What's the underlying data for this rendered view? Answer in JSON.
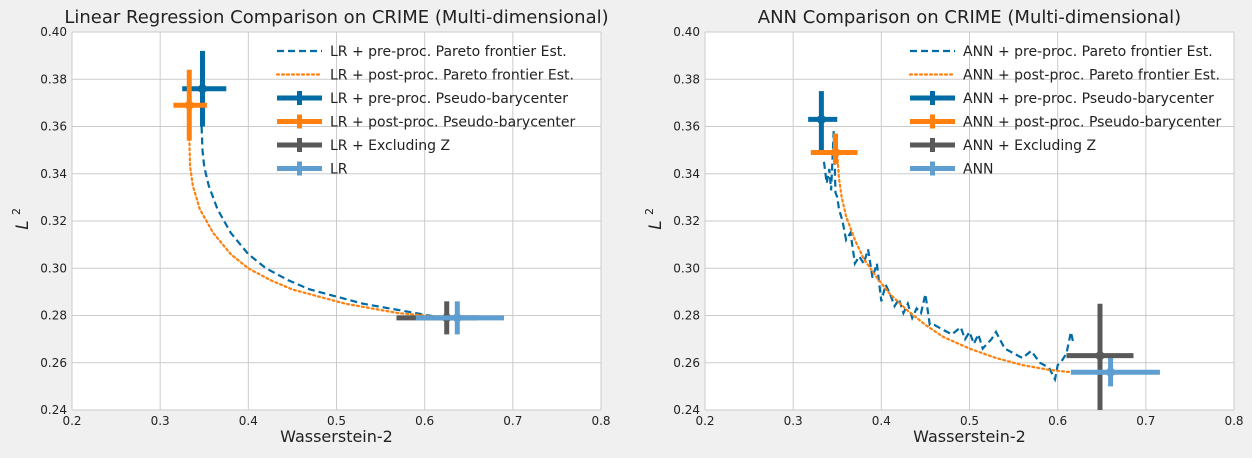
{
  "chart_data": [
    {
      "type": "line",
      "title": "Linear Regression Comparison on CRIME (Multi-dimensional)",
      "xlabel": "Wasserstein-2",
      "ylabel": "L",
      "ylabel_sup": "2",
      "xlim": [
        0.2,
        0.8
      ],
      "ylim": [
        0.24,
        0.4
      ],
      "x_ticks": [
        "0.2",
        "0.3",
        "0.4",
        "0.5",
        "0.6",
        "0.7",
        "0.8"
      ],
      "y_ticks": [
        "0.24",
        "0.26",
        "0.28",
        "0.30",
        "0.32",
        "0.34",
        "0.36",
        "0.38",
        "0.40"
      ],
      "grid": true,
      "legend_position": "top-right",
      "legend": [
        "LR + pre-proc. Pareto frontier Est.",
        "LR + post-proc. Pareto frontier Est.",
        "LR + pre-proc. Pseudo-barycenter",
        "LR + post-proc. Pseudo-barycenter",
        "LR + Excluding Z",
        "LR"
      ],
      "series": [
        {
          "style": "dashed",
          "color": "#006ba4",
          "x": [
            0.347,
            0.348,
            0.35,
            0.355,
            0.365,
            0.38,
            0.4,
            0.42,
            0.445,
            0.47,
            0.5,
            0.53,
            0.56,
            0.59,
            0.62
          ],
          "y": [
            0.36,
            0.35,
            0.343,
            0.335,
            0.325,
            0.315,
            0.306,
            0.3,
            0.295,
            0.291,
            0.288,
            0.285,
            0.283,
            0.281,
            0.279
          ]
        },
        {
          "style": "dotted",
          "color": "#ff800e",
          "x": [
            0.333,
            0.334,
            0.337,
            0.345,
            0.36,
            0.38,
            0.4,
            0.425,
            0.45,
            0.48,
            0.51,
            0.54,
            0.57,
            0.6,
            0.625
          ],
          "y": [
            0.355,
            0.343,
            0.335,
            0.325,
            0.315,
            0.306,
            0.3,
            0.295,
            0.291,
            0.288,
            0.285,
            0.283,
            0.281,
            0.28,
            0.279
          ]
        }
      ],
      "error_markers": [
        {
          "color": "#006ba4",
          "x": 0.348,
          "y": 0.376,
          "xerr": [
            0.325,
            0.375
          ],
          "yerr": [
            0.36,
            0.392
          ]
        },
        {
          "color": "#ff800e",
          "x": 0.333,
          "y": 0.369,
          "xerr": [
            0.315,
            0.353
          ],
          "yerr": [
            0.354,
            0.384
          ]
        },
        {
          "color": "#595959",
          "x": 0.625,
          "y": 0.279,
          "xerr": [
            0.568,
            0.66
          ],
          "yerr": [
            0.272,
            0.286
          ]
        },
        {
          "color": "#5f9ed1",
          "x": 0.637,
          "y": 0.279,
          "xerr": [
            0.59,
            0.69
          ],
          "yerr": [
            0.272,
            0.286
          ]
        }
      ]
    },
    {
      "type": "line",
      "title": "ANN Comparison on CRIME (Multi-dimensional)",
      "xlabel": "Wasserstein-2",
      "ylabel": "L",
      "ylabel_sup": "2",
      "xlim": [
        0.2,
        0.8
      ],
      "ylim": [
        0.24,
        0.4
      ],
      "x_ticks": [
        "0.2",
        "0.3",
        "0.4",
        "0.5",
        "0.6",
        "0.7",
        "0.8"
      ],
      "y_ticks": [
        "0.24",
        "0.26",
        "0.28",
        "0.30",
        "0.32",
        "0.34",
        "0.36",
        "0.38",
        "0.40"
      ],
      "grid": true,
      "legend_position": "top-right",
      "legend": [
        "ANN + pre-proc. Pareto frontier Est.",
        "ANN + post-proc. Pareto frontier Est.",
        "ANN + pre-proc. Pseudo-barycenter",
        "ANN + post-proc. Pseudo-barycenter",
        "ANN + Excluding Z",
        "ANN"
      ],
      "series": [
        {
          "style": "dashed",
          "color": "#006ba4",
          "x": [
            0.335,
            0.338,
            0.341,
            0.343,
            0.346,
            0.348,
            0.35,
            0.352,
            0.356,
            0.36,
            0.365,
            0.37,
            0.375,
            0.38,
            0.385,
            0.39,
            0.395,
            0.4,
            0.405,
            0.41,
            0.415,
            0.42,
            0.425,
            0.43,
            0.435,
            0.44,
            0.445,
            0.45,
            0.455,
            0.46,
            0.47,
            0.48,
            0.49,
            0.495,
            0.5,
            0.505,
            0.51,
            0.515,
            0.52,
            0.525,
            0.53,
            0.54,
            0.55,
            0.56,
            0.57,
            0.58,
            0.59,
            0.597,
            0.6,
            0.605,
            0.61,
            0.615,
            0.618
          ],
          "y": [
            0.345,
            0.336,
            0.342,
            0.333,
            0.358,
            0.332,
            0.33,
            0.325,
            0.32,
            0.312,
            0.315,
            0.302,
            0.305,
            0.302,
            0.308,
            0.296,
            0.302,
            0.286,
            0.293,
            0.289,
            0.284,
            0.287,
            0.281,
            0.285,
            0.279,
            0.283,
            0.281,
            0.289,
            0.276,
            0.276,
            0.274,
            0.272,
            0.275,
            0.27,
            0.273,
            0.268,
            0.272,
            0.266,
            0.268,
            0.27,
            0.273,
            0.266,
            0.264,
            0.262,
            0.265,
            0.26,
            0.258,
            0.253,
            0.259,
            0.261,
            0.264,
            0.273,
            0.268
          ]
        },
        {
          "style": "dotted",
          "color": "#ff800e",
          "x": [
            0.35,
            0.352,
            0.355,
            0.36,
            0.37,
            0.38,
            0.395,
            0.41,
            0.43,
            0.45,
            0.47,
            0.5,
            0.53,
            0.56,
            0.59,
            0.615
          ],
          "y": [
            0.348,
            0.338,
            0.33,
            0.322,
            0.312,
            0.304,
            0.296,
            0.289,
            0.282,
            0.276,
            0.271,
            0.266,
            0.262,
            0.259,
            0.257,
            0.256
          ]
        }
      ],
      "error_markers": [
        {
          "color": "#006ba4",
          "x": 0.332,
          "y": 0.363,
          "xerr": [
            0.317,
            0.35
          ],
          "yerr": [
            0.35,
            0.375
          ]
        },
        {
          "color": "#ff800e",
          "x": 0.348,
          "y": 0.349,
          "xerr": [
            0.32,
            0.373
          ],
          "yerr": [
            0.344,
            0.357
          ]
        },
        {
          "color": "#595959",
          "x": 0.648,
          "y": 0.263,
          "xerr": [
            0.61,
            0.686
          ],
          "yerr": [
            0.24,
            0.285
          ]
        },
        {
          "color": "#5f9ed1",
          "x": 0.66,
          "y": 0.256,
          "xerr": [
            0.615,
            0.716
          ],
          "yerr": [
            0.25,
            0.262
          ]
        }
      ]
    }
  ]
}
